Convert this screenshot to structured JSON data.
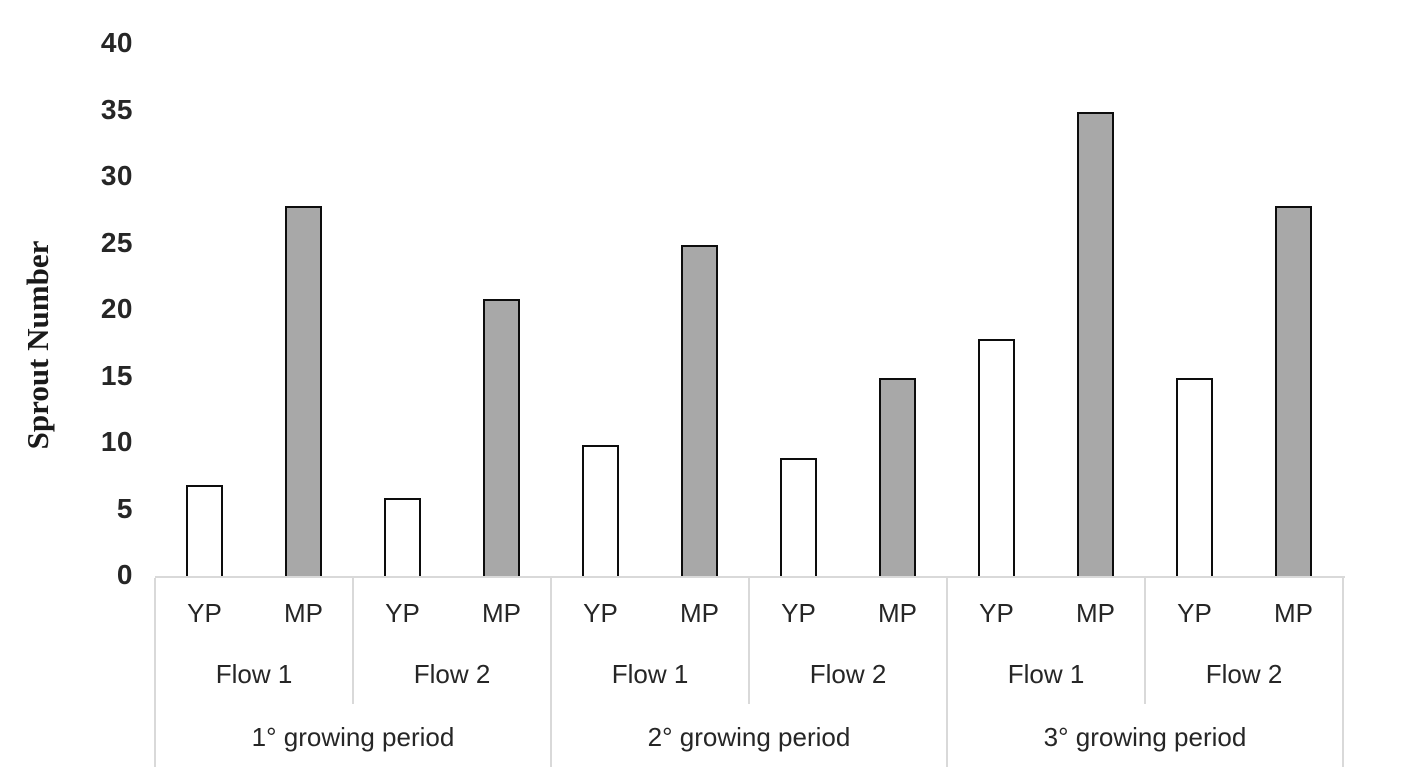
{
  "chart_data": {
    "type": "bar",
    "title": "",
    "xlabel": "",
    "ylabel": "Sprout Number",
    "ylim": [
      0,
      40
    ],
    "yticks": [
      0,
      5,
      10,
      15,
      20,
      25,
      30,
      35,
      40
    ],
    "grid": false,
    "legend": "none",
    "bar_labels": [
      "YP",
      "MP"
    ],
    "groups": [
      {
        "period": "1° growing period",
        "flows": [
          {
            "flow": "Flow 1",
            "bars": [
              {
                "label": "YP",
                "value": 7,
                "fill": "white"
              },
              {
                "label": "MP",
                "value": 28,
                "fill": "gray"
              }
            ]
          },
          {
            "flow": "Flow 2",
            "bars": [
              {
                "label": "YP",
                "value": 6,
                "fill": "white"
              },
              {
                "label": "MP",
                "value": 21,
                "fill": "gray"
              }
            ]
          }
        ]
      },
      {
        "period": "2° growing period",
        "flows": [
          {
            "flow": "Flow 1",
            "bars": [
              {
                "label": "YP",
                "value": 10,
                "fill": "white"
              },
              {
                "label": "MP",
                "value": 25,
                "fill": "gray"
              }
            ]
          },
          {
            "flow": "Flow 2",
            "bars": [
              {
                "label": "YP",
                "value": 9,
                "fill": "white"
              },
              {
                "label": "MP",
                "value": 15,
                "fill": "gray"
              }
            ]
          }
        ]
      },
      {
        "period": "3° growing period",
        "flows": [
          {
            "flow": "Flow 1",
            "bars": [
              {
                "label": "YP",
                "value": 18,
                "fill": "white"
              },
              {
                "label": "MP",
                "value": 35,
                "fill": "gray"
              }
            ]
          },
          {
            "flow": "Flow 2",
            "bars": [
              {
                "label": "YP",
                "value": 15,
                "fill": "white"
              },
              {
                "label": "MP",
                "value": 28,
                "fill": "gray"
              }
            ]
          }
        ]
      }
    ],
    "series": [
      {
        "name": "YP",
        "values": [
          7,
          6,
          10,
          9,
          18,
          15
        ]
      },
      {
        "name": "MP",
        "values": [
          28,
          21,
          25,
          15,
          35,
          28
        ]
      }
    ],
    "series_categories": [
      "1° Flow 1",
      "1° Flow 2",
      "2° Flow 1",
      "2° Flow 2",
      "3° Flow 1",
      "3° Flow 2"
    ],
    "colors": {
      "yp_fill": "#ffffff",
      "mp_fill": "#a8a8a8",
      "bar_border": "#0d0d0d",
      "axis_line": "#d9d9d9",
      "text": "#262626"
    }
  }
}
